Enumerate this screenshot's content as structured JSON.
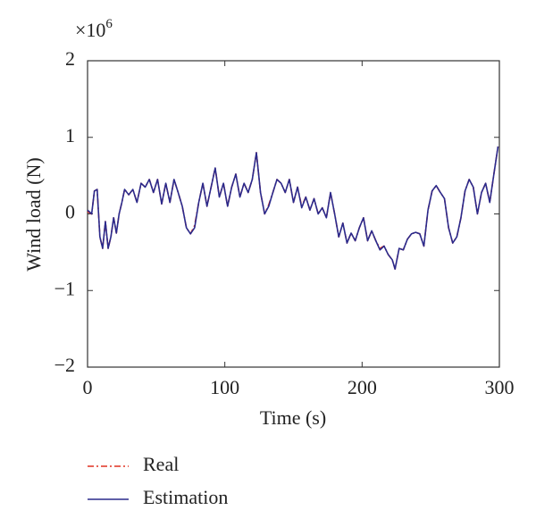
{
  "chart_data": {
    "type": "line",
    "xlabel": "Time (s)",
    "ylabel": "Wind load (N)",
    "y_multiplier": {
      "base": "×10",
      "exponent": "6"
    },
    "x": [
      0,
      3,
      5,
      7,
      9,
      11,
      13,
      15,
      17,
      19,
      21,
      23,
      25,
      27,
      30,
      33,
      36,
      39,
      42,
      45,
      48,
      51,
      54,
      57,
      60,
      63,
      66,
      69,
      72,
      75,
      78,
      81,
      84,
      87,
      90,
      93,
      96,
      99,
      102,
      105,
      108,
      111,
      114,
      117,
      120,
      123,
      126,
      129,
      132,
      135,
      138,
      141,
      144,
      147,
      150,
      153,
      156,
      159,
      162,
      165,
      168,
      171,
      174,
      177,
      180,
      183,
      186,
      189,
      192,
      195,
      198,
      201,
      204,
      207,
      210,
      213,
      216,
      219,
      222,
      224,
      227,
      230,
      233,
      236,
      239,
      242,
      245,
      248,
      251,
      254,
      257,
      260,
      263,
      266,
      269,
      272,
      275,
      278,
      281,
      284,
      287,
      290,
      293,
      296,
      299
    ],
    "series": [
      {
        "name": "Real",
        "color": "#e03020",
        "dash": "dashdot",
        "values": [
          0.03,
          0,
          0.3,
          0.32,
          -0.3,
          -0.45,
          -0.1,
          -0.45,
          -0.3,
          -0.05,
          -0.25,
          0,
          0.15,
          0.32,
          0.25,
          0.32,
          0.15,
          0.4,
          0.35,
          0.45,
          0.28,
          0.45,
          0.13,
          0.4,
          0.15,
          0.45,
          0.28,
          0.1,
          -0.18,
          -0.26,
          -0.15,
          0.15,
          0.4,
          0.1,
          0.35,
          0.6,
          0.22,
          0.4,
          0.1,
          0.35,
          0.52,
          0.22,
          0.4,
          0.28,
          0.45,
          0.8,
          0.28,
          0,
          0.12,
          0.28,
          0.45,
          0.4,
          0.28,
          0.45,
          0.15,
          0.35,
          0.1,
          0.22,
          0.05,
          0.2,
          0,
          0.08,
          -0.05,
          0.28,
          0,
          -0.3,
          -0.12,
          -0.38,
          -0.25,
          -0.35,
          -0.18,
          -0.05,
          -0.35,
          -0.22,
          -0.35,
          -0.45,
          -0.42,
          -0.53,
          -0.6,
          -0.72,
          -0.45,
          -0.47,
          -0.33,
          -0.26,
          -0.24,
          -0.26,
          -0.42,
          0.05,
          0.3,
          0.37,
          0.28,
          0.2,
          -0.18,
          -0.38,
          -0.3,
          -0.05,
          0.3,
          0.45,
          0.35,
          0,
          0.28,
          0.4,
          0.15,
          0.52,
          0.88
        ]
      },
      {
        "name": "Estimation",
        "color": "#2a2a8c",
        "dash": "solid",
        "values": [
          0.05,
          0,
          0.3,
          0.32,
          -0.3,
          -0.45,
          -0.1,
          -0.45,
          -0.3,
          -0.05,
          -0.25,
          0,
          0.15,
          0.32,
          0.25,
          0.32,
          0.15,
          0.4,
          0.35,
          0.45,
          0.28,
          0.45,
          0.13,
          0.4,
          0.15,
          0.45,
          0.28,
          0.1,
          -0.18,
          -0.26,
          -0.18,
          0.15,
          0.4,
          0.1,
          0.35,
          0.6,
          0.22,
          0.4,
          0.1,
          0.35,
          0.52,
          0.22,
          0.4,
          0.28,
          0.45,
          0.8,
          0.28,
          0,
          0.1,
          0.28,
          0.45,
          0.4,
          0.28,
          0.45,
          0.15,
          0.35,
          0.08,
          0.22,
          0.05,
          0.2,
          0,
          0.08,
          -0.05,
          0.28,
          0,
          -0.3,
          -0.12,
          -0.38,
          -0.25,
          -0.35,
          -0.18,
          -0.05,
          -0.35,
          -0.22,
          -0.35,
          -0.47,
          -0.42,
          -0.53,
          -0.6,
          -0.72,
          -0.45,
          -0.47,
          -0.33,
          -0.26,
          -0.24,
          -0.26,
          -0.42,
          0.05,
          0.3,
          0.37,
          0.28,
          0.2,
          -0.18,
          -0.38,
          -0.3,
          -0.05,
          0.3,
          0.45,
          0.35,
          0,
          0.28,
          0.4,
          0.15,
          0.52,
          0.88
        ]
      }
    ],
    "xlim": [
      0,
      300
    ],
    "xticks": [
      0,
      100,
      200,
      300
    ],
    "ylim": [
      -2,
      2
    ],
    "yticks": [
      {
        "value": -2,
        "label": "−2"
      },
      {
        "value": -1,
        "label": "−1"
      },
      0,
      1,
      2
    ],
    "grid": false
  }
}
